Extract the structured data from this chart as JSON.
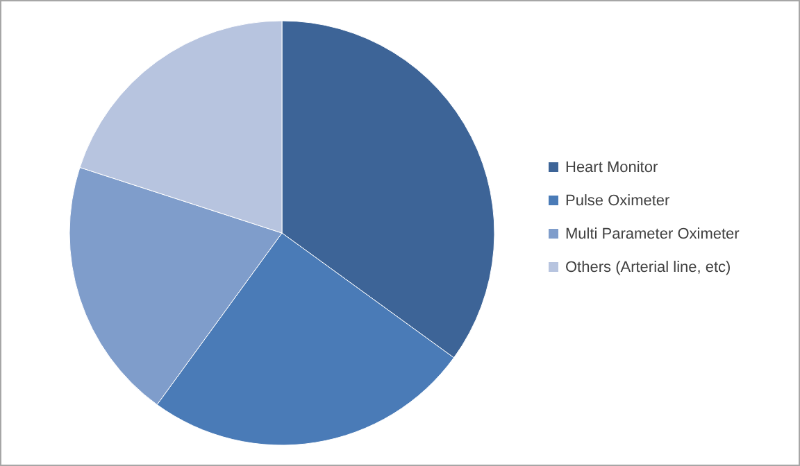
{
  "chart_data": {
    "type": "pie",
    "categories": [
      "Heart Monitor",
      "Pulse Oximeter",
      "Multi Parameter Oximeter",
      "Others (Arterial line, etc)"
    ],
    "values": [
      35,
      25,
      20,
      20
    ],
    "colors": [
      "#3d6497",
      "#4a7bb7",
      "#7f9dcb",
      "#b7c4df"
    ],
    "legend": "right"
  }
}
